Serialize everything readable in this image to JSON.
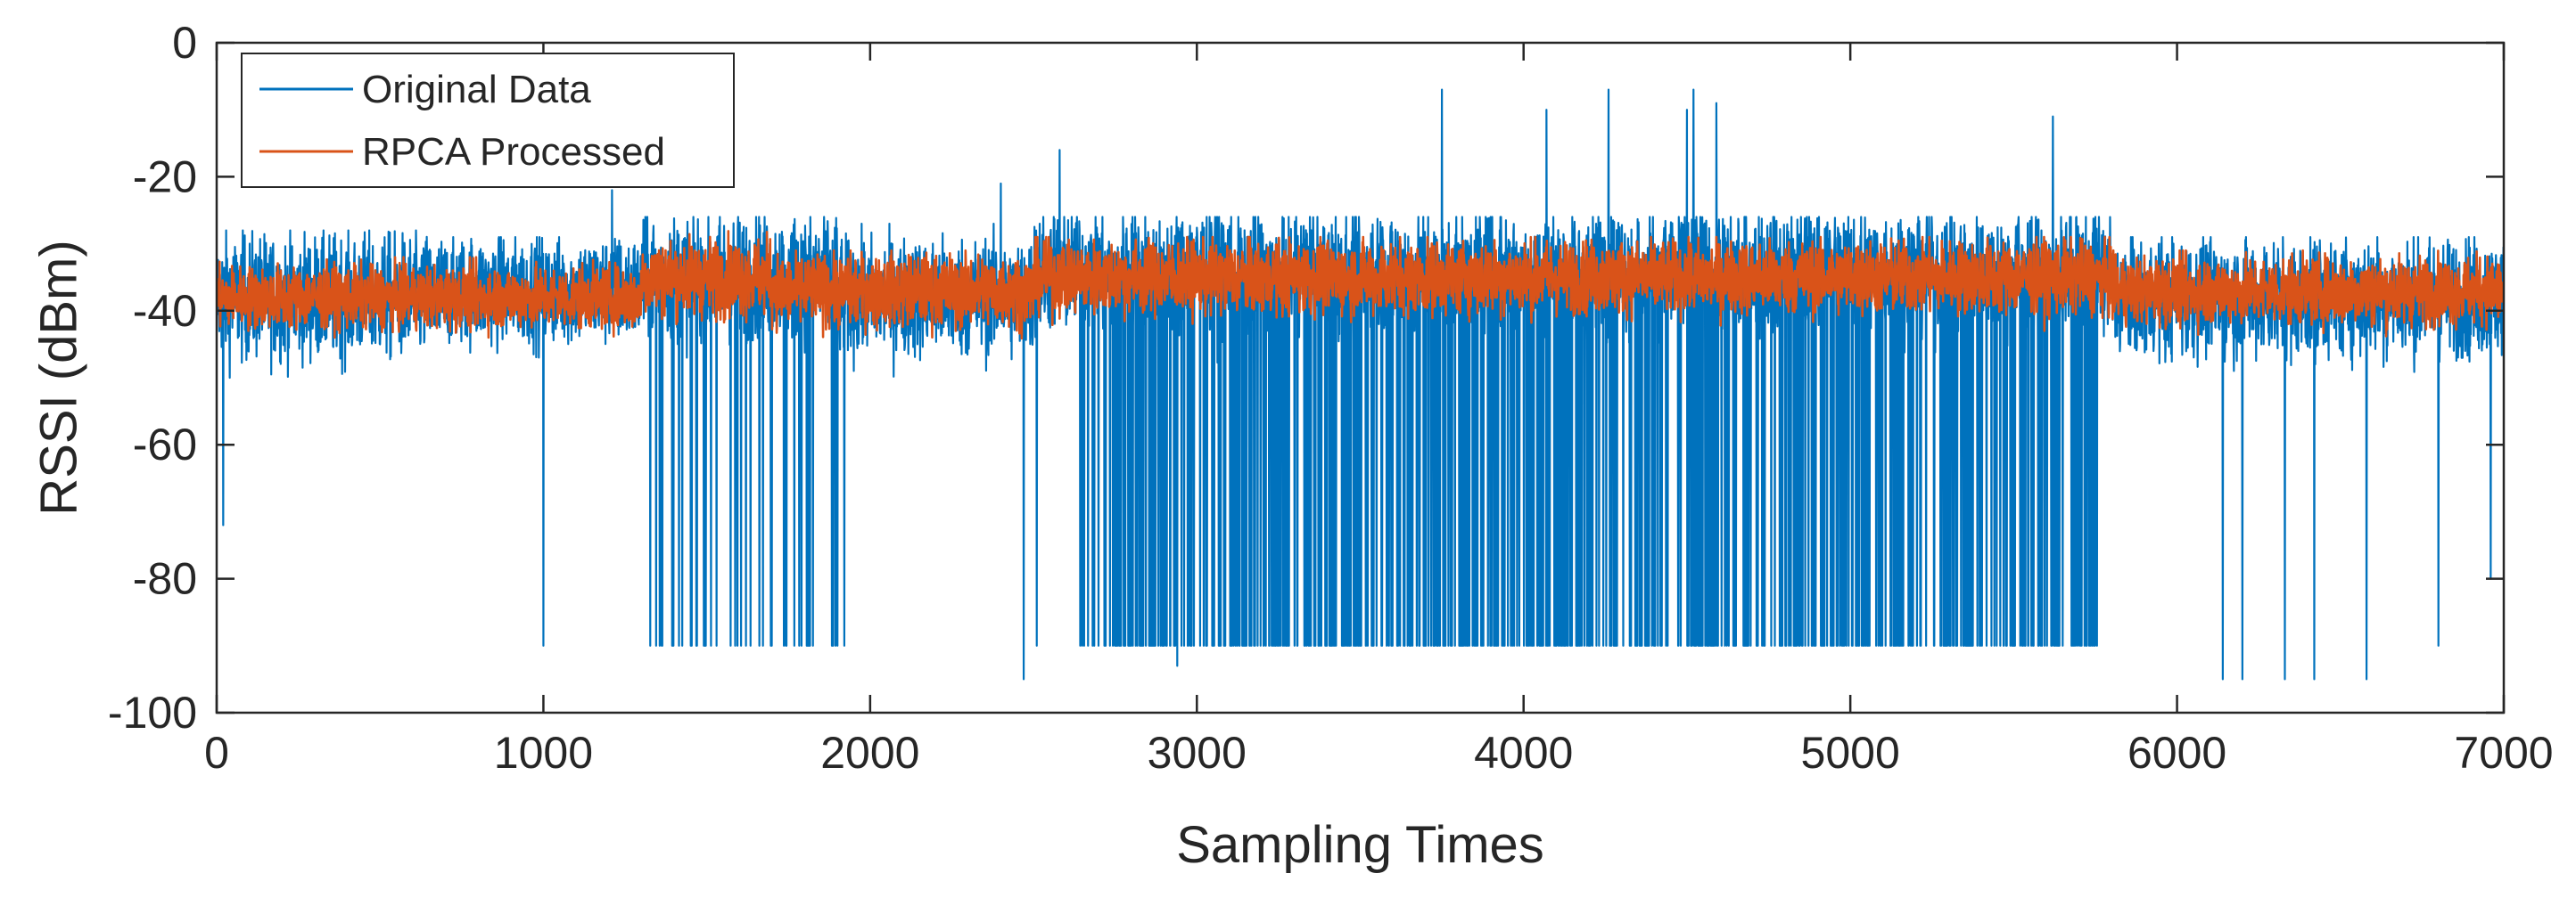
{
  "chart_data": {
    "type": "line",
    "title": "",
    "xlabel": "Sampling Times",
    "ylabel": "RSSI (dBm)",
    "xlim": [
      0,
      7000
    ],
    "ylim": [
      -100,
      0
    ],
    "xticks": [
      0,
      1000,
      2000,
      3000,
      4000,
      5000,
      6000,
      7000
    ],
    "yticks": [
      0,
      -20,
      -40,
      -60,
      -80,
      -100
    ],
    "xtick_labels": [
      "0",
      "1000",
      "2000",
      "3000",
      "4000",
      "5000",
      "6000",
      "7000"
    ],
    "ytick_labels": [
      "0",
      "-20",
      "-40",
      "-60",
      "-80",
      "-100"
    ],
    "grid": false,
    "legend_position": "top-left",
    "n_samples": 7000,
    "series": [
      {
        "name": "Original Data",
        "color": "#0072BD",
        "baseline_segments": [
          {
            "x": [
              0,
              700
            ],
            "y_mean": -38,
            "y_range": [
              -52,
              -28
            ]
          },
          {
            "x": [
              700,
              1300
            ],
            "y_mean": -37,
            "y_range": [
              -50,
              -29
            ]
          },
          {
            "x": [
              1300,
              1900
            ],
            "y_mean": -35,
            "y_range": [
              -50,
              -26
            ]
          },
          {
            "x": [
              1900,
              2500
            ],
            "y_mean": -38,
            "y_range": [
              -50,
              -27
            ]
          },
          {
            "x": [
              2500,
              3300
            ],
            "y_mean": -34,
            "y_range": [
              -50,
              -26
            ]
          },
          {
            "x": [
              3300,
              4700
            ],
            "y_mean": -34,
            "y_range": [
              -50,
              -26
            ]
          },
          {
            "x": [
              4700,
              5800
            ],
            "y_mean": -34,
            "y_range": [
              -50,
              -26
            ]
          },
          {
            "x": [
              5800,
              7000
            ],
            "y_mean": -38,
            "y_range": [
              -52,
              -29
            ]
          }
        ],
        "dropout_regions": [
          {
            "x": [
              1320,
              1560
            ],
            "y_min": -90,
            "density": 0.3
          },
          {
            "x": [
              1560,
              1940
            ],
            "y_min": -90,
            "density": 0.3
          },
          {
            "x": [
              2640,
              5760
            ],
            "y_min": -90,
            "density": 0.55
          }
        ],
        "isolated_drops": [
          {
            "x": 1000,
            "y": -90
          },
          {
            "x": 20,
            "y": -72
          },
          {
            "x": 2470,
            "y": -95
          },
          {
            "x": 2510,
            "y": -90
          },
          {
            "x": 2940,
            "y": -93
          },
          {
            "x": 6140,
            "y": -95
          },
          {
            "x": 6200,
            "y": -95
          },
          {
            "x": 6330,
            "y": -95
          },
          {
            "x": 6420,
            "y": -95
          },
          {
            "x": 6580,
            "y": -95
          },
          {
            "x": 6800,
            "y": -90
          },
          {
            "x": 6960,
            "y": -80
          }
        ],
        "spikes": [
          {
            "x": 1210,
            "y": -22
          },
          {
            "x": 2400,
            "y": -21
          },
          {
            "x": 2580,
            "y": -16
          },
          {
            "x": 3750,
            "y": -7
          },
          {
            "x": 4070,
            "y": -10
          },
          {
            "x": 4260,
            "y": -7
          },
          {
            "x": 4500,
            "y": -10
          },
          {
            "x": 4520,
            "y": -7
          },
          {
            "x": 4590,
            "y": -9
          },
          {
            "x": 5620,
            "y": -11
          }
        ]
      },
      {
        "name": "RPCA Processed",
        "color": "#D95319",
        "baseline_segments": [
          {
            "x": [
              0,
              1300
            ],
            "y_mean": -38,
            "y_range": [
              -44,
              -32
            ]
          },
          {
            "x": [
              1300,
              1700
            ],
            "y_mean": -35,
            "y_range": [
              -42,
              -27
            ]
          },
          {
            "x": [
              1700,
              2500
            ],
            "y_mean": -37,
            "y_range": [
              -45,
              -31
            ]
          },
          {
            "x": [
              2500,
              5800
            ],
            "y_mean": -35,
            "y_range": [
              -43,
              -29
            ]
          },
          {
            "x": [
              5800,
              7000
            ],
            "y_mean": -37,
            "y_range": [
              -44,
              -31
            ]
          }
        ]
      }
    ]
  }
}
